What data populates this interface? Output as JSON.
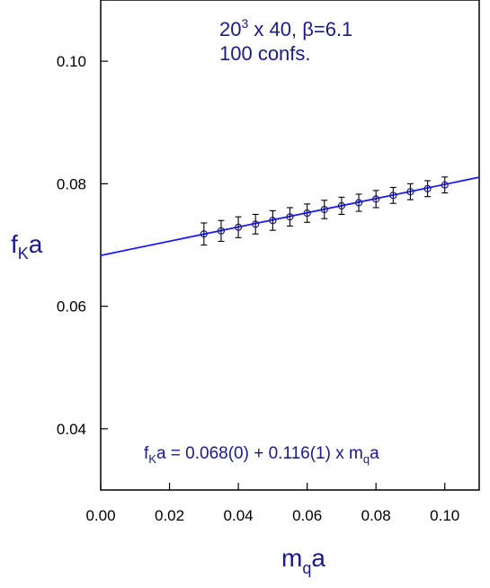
{
  "chart_data": {
    "type": "scatter",
    "xlabel_main": "m",
    "xlabel_sub": "q",
    "xlabel_tail": "a",
    "ylabel_main": "f",
    "ylabel_sub": "K",
    "ylabel_tail": "a",
    "xlim": [
      0.0,
      0.11
    ],
    "ylim": [
      0.03,
      0.11
    ],
    "x_ticks": [
      0.0,
      0.02,
      0.04,
      0.06,
      0.08,
      0.1
    ],
    "x_tick_labels": [
      "0.00",
      "0.02",
      "0.04",
      "0.06",
      "0.08",
      "0.10"
    ],
    "y_ticks": [
      0.04,
      0.06,
      0.08,
      0.1
    ],
    "y_tick_labels": [
      "0.04",
      "0.06",
      "0.08",
      "0.10"
    ],
    "grid": false,
    "points": [
      {
        "x": 0.03,
        "y": 0.0718,
        "err": 0.0018
      },
      {
        "x": 0.035,
        "y": 0.0723,
        "err": 0.0017
      },
      {
        "x": 0.04,
        "y": 0.0729,
        "err": 0.0017
      },
      {
        "x": 0.045,
        "y": 0.0734,
        "err": 0.0016
      },
      {
        "x": 0.05,
        "y": 0.074,
        "err": 0.0016
      },
      {
        "x": 0.055,
        "y": 0.0746,
        "err": 0.0015
      },
      {
        "x": 0.06,
        "y": 0.0752,
        "err": 0.0015
      },
      {
        "x": 0.065,
        "y": 0.0758,
        "err": 0.0015
      },
      {
        "x": 0.07,
        "y": 0.0764,
        "err": 0.0014
      },
      {
        "x": 0.075,
        "y": 0.0769,
        "err": 0.0014
      },
      {
        "x": 0.08,
        "y": 0.0775,
        "err": 0.0014
      },
      {
        "x": 0.085,
        "y": 0.0781,
        "err": 0.0013
      },
      {
        "x": 0.09,
        "y": 0.0787,
        "err": 0.0013
      },
      {
        "x": 0.095,
        "y": 0.0792,
        "err": 0.0013
      },
      {
        "x": 0.1,
        "y": 0.0798,
        "err": 0.0013
      }
    ],
    "fit_line": {
      "intercept": 0.0683,
      "slope": 0.116
    },
    "colors": {
      "fit": "#1a1aff",
      "points": "#1a1a8c",
      "text": "#1a1a8c"
    },
    "annotation_lattice": {
      "pre": "20",
      "sup": "3",
      "post": " x 40, β=6.1"
    },
    "annotation_confs": "100 confs.",
    "fit_formula": {
      "f": "f",
      "sub1": "K",
      "mid": "a = 0.068(0) + 0.116(1) x m",
      "sub2": "q",
      "end": "a"
    }
  }
}
